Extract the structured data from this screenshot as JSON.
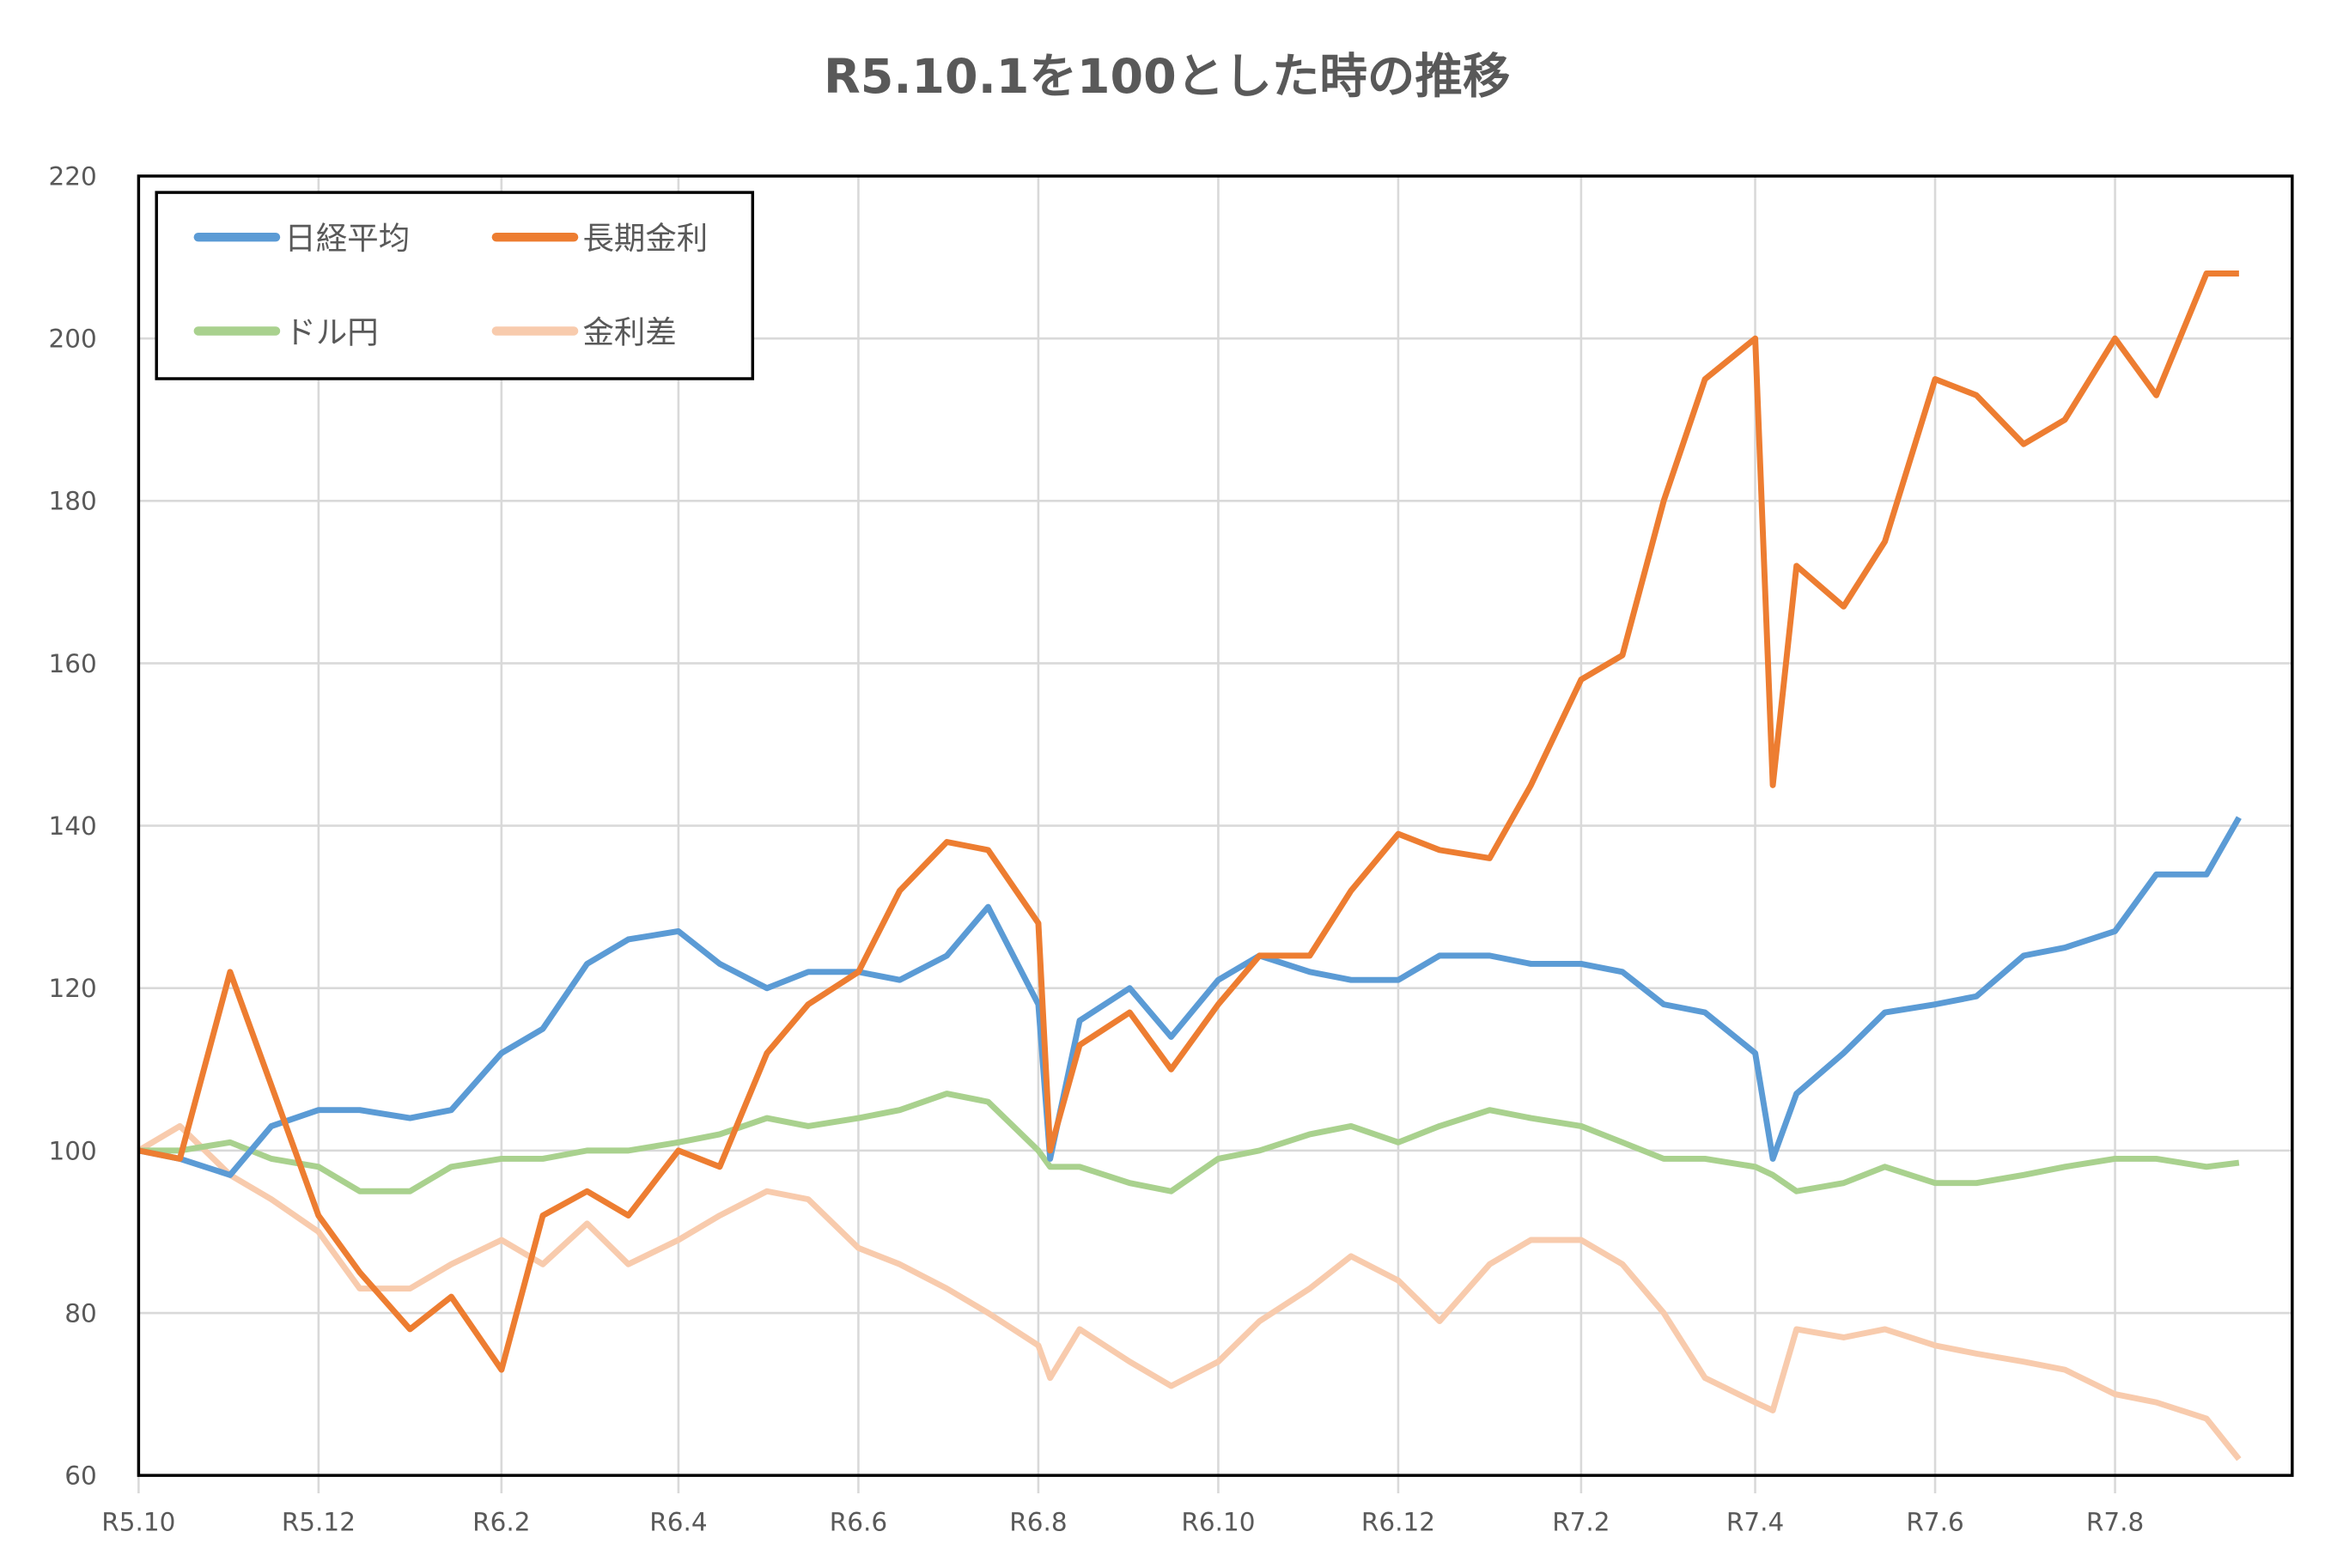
{
  "chart_data": {
    "type": "line",
    "title": "R5.10.1を100とした時の推移",
    "xlabel": "",
    "ylabel": "",
    "ylim": [
      60,
      220
    ],
    "yticks": [
      60,
      80,
      100,
      120,
      140,
      160,
      180,
      200,
      220
    ],
    "xlim": [
      "2023-10-01",
      "2025-10-15"
    ],
    "xtick_labels": [
      "R5.10",
      "R5.12",
      "R6.2",
      "R6.4",
      "R6.6",
      "R6.8",
      "R6.10",
      "R6.12",
      "R7.2",
      "R7.4",
      "R7.6",
      "R7.8"
    ],
    "xtick_dates": [
      "2023-10-01",
      "2023-12-01",
      "2024-02-01",
      "2024-04-01",
      "2024-06-01",
      "2024-08-01",
      "2024-10-01",
      "2024-12-01",
      "2025-02-01",
      "2025-04-01",
      "2025-06-01",
      "2025-08-01"
    ],
    "grid": true,
    "legend_position": "top-left",
    "x": [
      "2023-10-01",
      "2023-10-15",
      "2023-11-01",
      "2023-11-15",
      "2023-12-01",
      "2023-12-15",
      "2024-01-01",
      "2024-01-15",
      "2024-02-01",
      "2024-02-15",
      "2024-03-01",
      "2024-03-15",
      "2024-04-01",
      "2024-04-15",
      "2024-05-01",
      "2024-05-15",
      "2024-06-01",
      "2024-06-15",
      "2024-07-01",
      "2024-07-15",
      "2024-08-01",
      "2024-08-05",
      "2024-08-15",
      "2024-09-01",
      "2024-09-15",
      "2024-10-01",
      "2024-10-15",
      "2024-11-01",
      "2024-11-15",
      "2024-12-01",
      "2024-12-15",
      "2025-01-01",
      "2025-01-15",
      "2025-02-01",
      "2025-02-15",
      "2025-03-01",
      "2025-03-15",
      "2025-04-01",
      "2025-04-07",
      "2025-04-15",
      "2025-05-01",
      "2025-05-15",
      "2025-06-01",
      "2025-06-15",
      "2025-07-01",
      "2025-07-15",
      "2025-08-01",
      "2025-08-15",
      "2025-09-01",
      "2025-09-12"
    ],
    "series": [
      {
        "name": "日経平均",
        "color": "#5B9BD5",
        "values": [
          100,
          99,
          97,
          103,
          105,
          105,
          104,
          105,
          112,
          115,
          123,
          126,
          127,
          123,
          120,
          122,
          122,
          121,
          124,
          130,
          118,
          99,
          116,
          120,
          114,
          121,
          124,
          122,
          121,
          121,
          124,
          124,
          123,
          123,
          122,
          118,
          117,
          112,
          99,
          107,
          112,
          117,
          118,
          119,
          124,
          125,
          127,
          134,
          134,
          141
        ]
      },
      {
        "name": "長期金利",
        "color": "#ED7D31",
        "values": [
          100,
          99,
          122,
          108,
          92,
          85,
          78,
          82,
          73,
          92,
          95,
          92,
          100,
          98,
          112,
          118,
          122,
          132,
          138,
          137,
          128,
          100,
          113,
          117,
          110,
          118,
          124,
          124,
          132,
          139,
          137,
          136,
          145,
          158,
          161,
          180,
          195,
          200,
          145,
          172,
          167,
          175,
          195,
          193,
          187,
          190,
          200,
          193,
          208,
          208
        ]
      },
      {
        "name": "ドル円",
        "color": "#A9D18E",
        "values": [
          100,
          100,
          101,
          99,
          98,
          95,
          95,
          98,
          99,
          99,
          100,
          100,
          101,
          102,
          104,
          103,
          104,
          105,
          107,
          106,
          100,
          98,
          98,
          96,
          95,
          99,
          100,
          102,
          103,
          101,
          103,
          105,
          104,
          103,
          101,
          99,
          99,
          98,
          97,
          95,
          96,
          98,
          96,
          96,
          97,
          98,
          99,
          99,
          98,
          98.5
        ]
      },
      {
        "name": "金利差",
        "color": "#F8CBAD",
        "values": [
          100,
          103,
          97,
          94,
          90,
          83,
          83,
          86,
          89,
          86,
          91,
          86,
          89,
          92,
          95,
          94,
          88,
          86,
          83,
          80,
          76,
          72,
          78,
          74,
          71,
          74,
          79,
          83,
          87,
          84,
          79,
          86,
          89,
          89,
          86,
          80,
          72,
          69,
          68,
          78,
          77,
          78,
          76,
          75,
          74,
          73,
          70,
          69,
          67,
          62
        ]
      }
    ]
  }
}
